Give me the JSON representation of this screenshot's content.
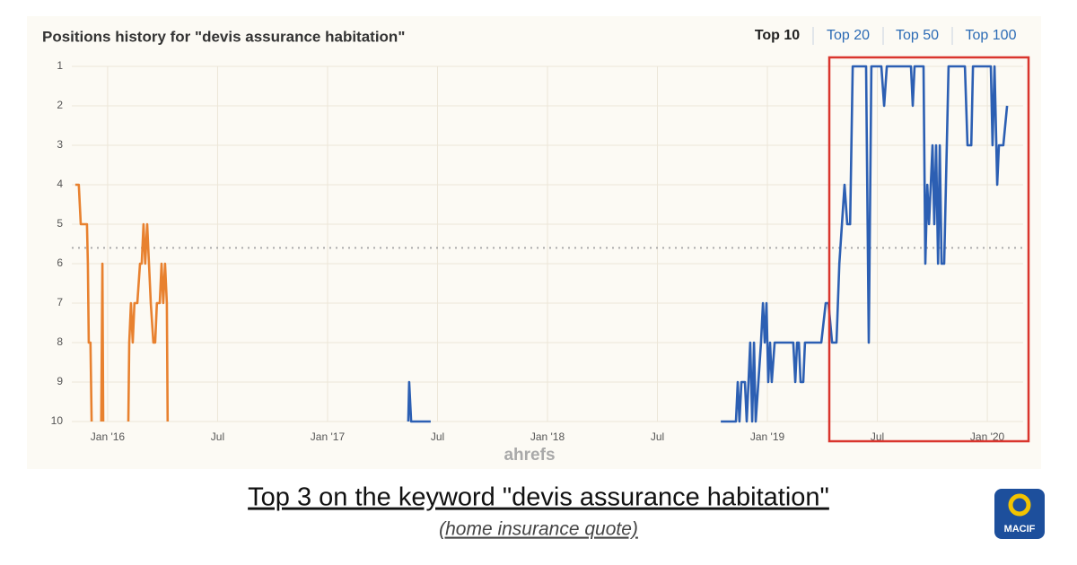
{
  "chart_data": {
    "type": "line",
    "title": "Positions history for \"devis assurance habitation\"",
    "xlim": [
      2015.837,
      2020.163
    ],
    "xticks": [
      {
        "value": 2016,
        "label": "Jan '16"
      },
      {
        "value": 2016.5,
        "label": "Jul"
      },
      {
        "value": 2017,
        "label": "Jan '17"
      },
      {
        "value": 2017.5,
        "label": "Jul"
      },
      {
        "value": 2018,
        "label": "Jan '18"
      },
      {
        "value": 2018.5,
        "label": "Jul"
      },
      {
        "value": 2019,
        "label": "Jan '19"
      },
      {
        "value": 2019.5,
        "label": "Jul"
      },
      {
        "value": 2020,
        "label": "Jan '20"
      }
    ],
    "ylim": [
      10,
      1
    ],
    "yticks": [
      1,
      2,
      3,
      4,
      5,
      6,
      7,
      8,
      9,
      10
    ],
    "grid": true,
    "average_line": 5.6,
    "series": [
      {
        "color": "#e8812f",
        "x": [
          2015.853,
          2015.869,
          2015.878,
          2015.906,
          2015.91,
          2015.914,
          2015.922,
          2015.927,
          2015.95,
          2015.971,
          2015.976,
          2015.98,
          2016.05,
          2016.094,
          2016.098,
          2016.106,
          2016.114,
          2016.122,
          2016.135,
          2016.147,
          2016.155,
          2016.163,
          2016.171,
          2016.18,
          2016.188,
          2016.196,
          2016.208,
          2016.216,
          2016.224,
          2016.237,
          2016.245,
          2016.253,
          2016.261,
          2016.269,
          2016.273
        ],
        "values": [
          4,
          4,
          5,
          5,
          6,
          8,
          8,
          10,
          null,
          10,
          6,
          10,
          null,
          10,
          8,
          7,
          8,
          7,
          7,
          6,
          6,
          5,
          6,
          5,
          6,
          7,
          8,
          8,
          7,
          7,
          6,
          7,
          6,
          7,
          10
        ]
      },
      {
        "color": "#2c5fb3",
        "x": [
          2017.367,
          2017.371,
          2017.38,
          2017.469,
          2018.0,
          2018.788,
          2018.857,
          2018.865,
          2018.873,
          2018.882,
          2018.898,
          2018.906,
          2018.914,
          2018.922,
          2018.931,
          2018.939,
          2018.947,
          2018.959,
          2018.971,
          2018.98,
          2018.988,
          2018.996,
          2019.004,
          2019.012,
          2019.02,
          2019.033,
          2019.045,
          2019.061,
          2019.082,
          2019.102,
          2019.118,
          2019.127,
          2019.135,
          2019.143,
          2019.151,
          2019.163,
          2019.171,
          2019.245,
          2019.265,
          2019.278,
          2019.294,
          2019.314,
          2019.327,
          2019.339,
          2019.351,
          2019.363,
          2019.376,
          2019.388,
          2019.449,
          2019.461,
          2019.473,
          2019.518,
          2019.531,
          2019.543,
          2019.653,
          2019.661,
          2019.669,
          2019.71,
          2019.718,
          2019.727,
          2019.735,
          2019.743,
          2019.751,
          2019.759,
          2019.767,
          2019.776,
          2019.784,
          2019.792,
          2019.804,
          2019.824,
          2019.898,
          2019.91,
          2019.927,
          2019.935,
          2020.016,
          2020.024,
          2020.033,
          2020.045,
          2020.053,
          2020.073,
          2020.09
        ],
        "values": [
          10,
          9,
          10,
          10,
          null,
          10,
          10,
          9,
          10,
          9,
          9,
          10,
          9,
          8,
          10,
          8,
          10,
          9,
          8,
          7,
          8,
          7,
          9,
          8,
          9,
          8,
          8,
          8,
          8,
          8,
          8,
          9,
          8,
          8,
          9,
          9,
          8,
          8,
          7,
          7,
          8,
          8,
          6,
          5,
          4,
          5,
          5,
          1,
          1,
          8,
          1,
          1,
          2,
          1,
          1,
          2,
          1,
          1,
          6,
          4,
          5,
          4,
          3,
          5,
          3,
          6,
          3,
          6,
          6,
          1,
          1,
          3,
          3,
          1,
          1,
          3,
          1,
          4,
          3,
          3,
          2
        ]
      }
    ]
  },
  "tabs": [
    "Top 10",
    "Top 20",
    "Top 50",
    "Top 100"
  ],
  "watermark": "ahrefs",
  "caption": "Top 3 on the keyword \"devis assurance habitation\"",
  "subcaption": "(home insurance quote)",
  "logo_text": "MACIF"
}
